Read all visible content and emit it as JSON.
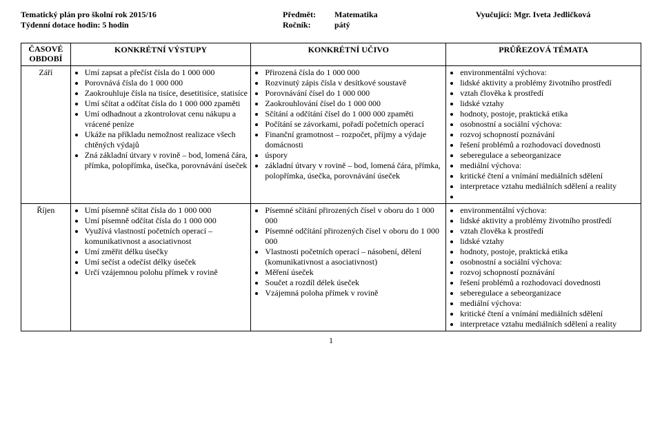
{
  "header": {
    "title_line": "Tematický plán pro školní rok 2015/16",
    "dotation_line": "Týdenní dotace hodin:      5 hodin",
    "subject_label": "Předmět:",
    "subject_value": "Matematika",
    "grade_label": "Ročník:",
    "grade_value": "pátý",
    "teacher_label": "Vyučující: Mgr. Iveta Jedličková"
  },
  "table": {
    "head": {
      "period_l1": "ČASOVÉ",
      "period_l2": "OBDOBÍ",
      "outputs": "KONKRÉTNÍ VÝSTUPY",
      "content": "KONKRÉTNÍ UČIVO",
      "cross": "PRŮŘEZOVÁ TÉMATA"
    },
    "rows": [
      {
        "period": "Září",
        "outputs": [
          "Umí zapsat a přečíst čísla do 1 000 000",
          "Porovnává čísla do 1 000 000",
          "Zaokrouhluje čísla na tisíce, desetitisíce, statisíce",
          "Umí sčítat a odčítat čísla do 1 000 000 zpaměti",
          "Umí odhadnout a zkontrolovat cenu nákupu a vrácené peníze",
          "Ukáže na příkladu nemožnost realizace všech chtěných výdajů",
          "Zná základní útvary v rovině – bod, lomená čára, přímka, polopřímka, úsečka, porovnávání úseček"
        ],
        "content": [
          "Přirozená čísla do 1 000 000",
          "Rozvinutý zápis čísla v desítkové soustavě",
          "Porovnávání čísel do 1 000 000",
          "Zaokrouhlování čísel do 1 000 000",
          "Sčítání a odčítání čísel do 1 000 000 zpaměti",
          "Počítání se závorkami, pořadí početních operací",
          "Finanční gramotnost – rozpočet, příjmy a výdaje domácnosti",
          "úspory",
          "základní útvary v rovině – bod, lomená čára, přímka, polopřímka, úsečka, porovnávání úseček"
        ],
        "cross": [
          "environmentální výchova:",
          "lidské aktivity a problémy životního prostředí",
          "vztah člověka k prostředí",
          "lidské vztahy",
          "hodnoty, postoje, praktická etika",
          "osobnostní a sociální výchova:",
          "rozvoj schopností poznávání",
          "řešení problémů a rozhodovací dovednosti",
          "seberegulace a sebeorganizace",
          "mediální výchova:",
          "kritické čtení a vnímání mediálních sdělení",
          "interpretace vztahu mediálních sdělení a reality",
          ""
        ]
      },
      {
        "period": "Říjen",
        "outputs": [
          "Umí písemně sčítat čísla do 1 000 000",
          "Umí písemně odčítat čísla do 1 000 000",
          "Využívá vlastností početních operací – komunikativnost a asociativnost",
          "Umí změřit délku úsečky",
          "Umí sečíst a odečíst délky úseček",
          "Určí vzájemnou polohu přímek v rovině"
        ],
        "content": [
          "Písemné sčítání přirozených čísel v oboru do 1 000 000",
          "Písemné odčítání přirozených čísel v oboru do 1 000 000",
          "Vlastnosti početních operací – násobení, dělení (komunikativnost a asociativnost)",
          "Měření úseček",
          "Součet a rozdíl délek úseček",
          "Vzájemná poloha přímek v rovině"
        ],
        "cross": [
          "environmentální výchova:",
          "lidské aktivity a problémy životního prostředí",
          "vztah člověka k prostředí",
          "lidské vztahy",
          "hodnoty, postoje, praktická etika",
          "osobnostní a sociální výchova:",
          "rozvoj schopností poznávání",
          "řešení problémů a rozhodovací dovednosti",
          "seberegulace a sebeorganizace",
          "mediální výchova:",
          "kritické čtení a vnímání mediálních sdělení",
          "interpretace vztahu mediálních sdělení a reality"
        ]
      }
    ]
  },
  "page_number": "1"
}
